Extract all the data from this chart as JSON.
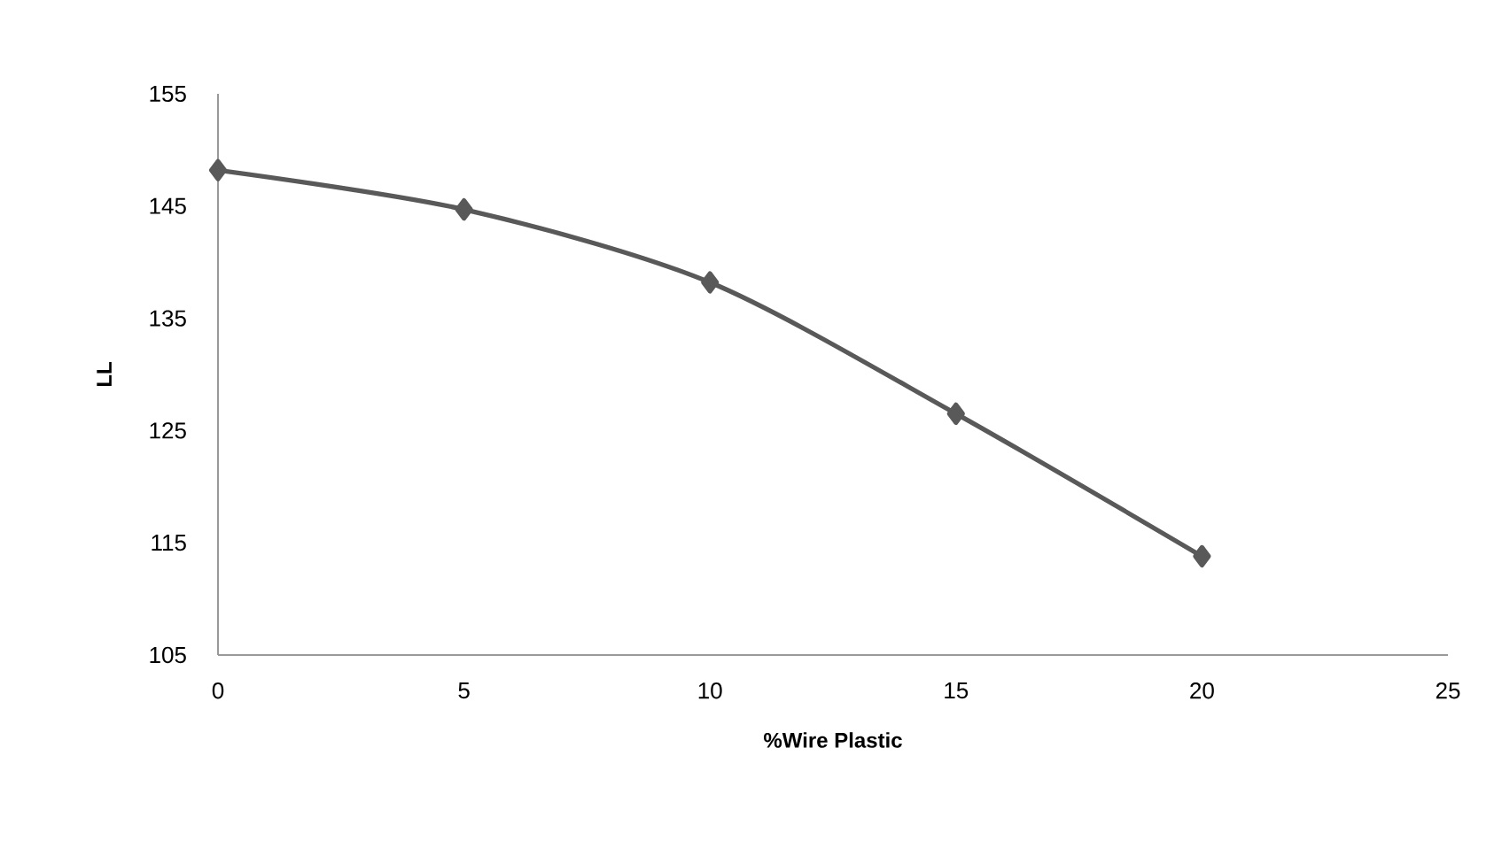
{
  "chart_data": {
    "type": "line",
    "xlabel": "%Wire Plastic",
    "ylabel": "LL",
    "x": [
      0,
      5,
      10,
      15,
      20
    ],
    "series": [
      {
        "color": "#595959",
        "values": [
          148.2,
          144.7,
          138.2,
          126.5,
          113.8
        ]
      }
    ],
    "xlim": [
      0,
      25
    ],
    "xticks": [
      0,
      5,
      10,
      15,
      20,
      25
    ],
    "ylim": [
      105,
      155
    ],
    "yticks": [
      105,
      115,
      125,
      135,
      145,
      155
    ],
    "grid": false,
    "marker": "diamond",
    "line_style": "solid"
  }
}
